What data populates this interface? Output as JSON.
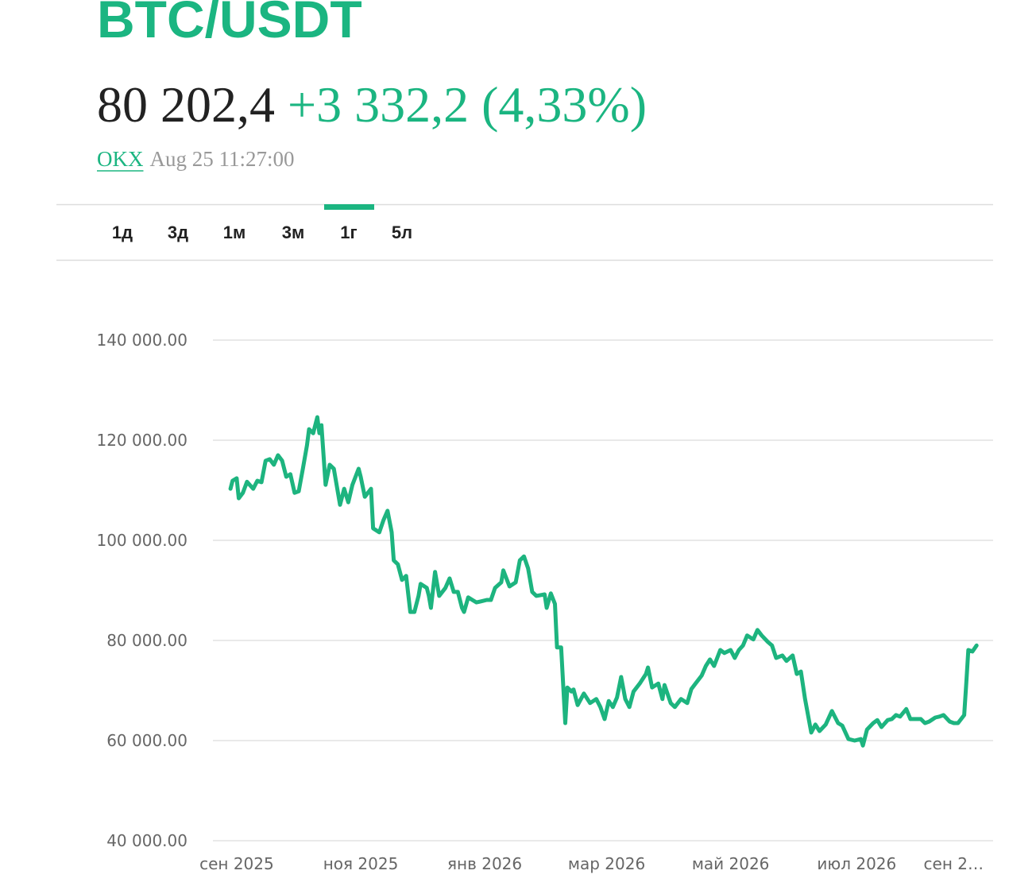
{
  "header": {
    "title": "BTC/USDT",
    "price": "80 202,4",
    "change": "+3 332,2 (4,33%)",
    "source": "OKX",
    "time": "Aug 25 11:27:00"
  },
  "tabs": [
    "1д",
    "3д",
    "1м",
    "3м",
    "1г",
    "5л"
  ],
  "active_tab": "1г",
  "chart_data": {
    "type": "line",
    "color": "#1db47f",
    "grid": true,
    "xlim": [
      -8.5,
      369
    ],
    "ylim": [
      40000,
      140000
    ],
    "xticks": [
      {
        "value": 3,
        "label": "сен 2025"
      },
      {
        "value": 63,
        "label": "ноя 2025"
      },
      {
        "value": 123,
        "label": "янв 2026"
      },
      {
        "value": 182,
        "label": "мар 2026"
      },
      {
        "value": 242,
        "label": "май 2026"
      },
      {
        "value": 303,
        "label": "июл 2026"
      },
      {
        "value": 363,
        "label": "сен 2…"
      }
    ],
    "yticks": [
      {
        "value": 40000,
        "label": "40 000.00"
      },
      {
        "value": 60000,
        "label": "60 000.00"
      },
      {
        "value": 80000,
        "label": "80 000.00"
      },
      {
        "value": 100000,
        "label": "100 000.00"
      },
      {
        "value": 120000,
        "label": "120 000.00"
      },
      {
        "value": 140000,
        "label": "140 000.00"
      }
    ],
    "x": [
      0,
      1,
      3,
      4,
      6,
      8,
      11,
      13,
      15,
      17,
      19,
      21,
      23,
      25,
      27,
      29,
      31,
      33,
      35,
      37,
      38,
      40,
      42,
      43,
      44,
      46,
      48,
      50,
      53,
      55,
      57,
      59,
      62,
      63,
      65,
      68,
      69,
      72,
      74,
      76,
      78,
      79,
      81,
      83,
      85,
      87,
      89,
      91,
      92,
      95,
      96,
      97,
      99,
      101,
      104,
      106,
      108,
      110,
      112,
      113,
      115,
      117,
      119,
      121,
      124,
      126,
      128,
      131,
      132,
      135,
      138,
      140,
      142,
      144,
      146,
      148,
      152,
      153,
      155,
      157,
      158,
      160,
      162,
      163,
      165,
      166,
      168,
      171,
      174,
      177,
      179,
      181,
      183,
      185,
      187,
      189,
      191,
      193,
      195,
      198,
      201,
      202,
      204,
      207,
      209,
      210,
      213,
      215,
      218,
      221,
      223,
      225,
      228,
      230,
      232,
      234,
      237,
      239,
      242,
      244,
      246,
      248,
      250,
      253,
      255,
      257,
      260,
      262,
      264,
      267,
      269,
      272,
      274,
      276,
      278,
      281,
      283,
      285,
      288,
      291,
      292,
      294,
      296,
      299,
      302,
      305,
      306,
      308,
      311,
      313,
      315,
      318,
      320,
      322,
      324,
      327,
      329,
      332,
      334,
      336,
      338,
      341,
      343,
      345,
      348,
      350,
      352,
      355,
      356,
      357,
      359,
      361
    ],
    "values": [
      110300,
      111900,
      112400,
      108400,
      109500,
      111700,
      110300,
      111900,
      111600,
      115900,
      116200,
      115100,
      117000,
      115900,
      112700,
      113200,
      109500,
      109800,
      114300,
      119000,
      122200,
      121400,
      124600,
      121400,
      123000,
      111100,
      115100,
      114300,
      107100,
      110300,
      107600,
      111100,
      114300,
      112700,
      108700,
      110300,
      102400,
      101600,
      104000,
      105900,
      101600,
      96000,
      95200,
      92100,
      92900,
      85700,
      85700,
      88900,
      91300,
      90500,
      88900,
      86500,
      93700,
      88900,
      90500,
      92400,
      89700,
      89700,
      86500,
      85700,
      88600,
      88100,
      87600,
      87800,
      88100,
      88100,
      90500,
      91600,
      94000,
      90800,
      91600,
      96000,
      96800,
      94400,
      89700,
      88900,
      89200,
      86500,
      89400,
      87300,
      78600,
      78600,
      63500,
      70600,
      69800,
      70200,
      67100,
      69400,
      67500,
      68300,
      66700,
      64300,
      67900,
      66700,
      68600,
      72700,
      68300,
      66700,
      69800,
      71400,
      73300,
      74600,
      70600,
      71400,
      68300,
      71100,
      67500,
      66700,
      68300,
      67500,
      70300,
      71400,
      73000,
      74900,
      76200,
      74900,
      78100,
      77500,
      78100,
      76500,
      78100,
      79000,
      81000,
      80200,
      82100,
      81000,
      79700,
      79000,
      76500,
      77000,
      75900,
      77000,
      73300,
      73800,
      68300,
      61600,
      63200,
      61900,
      63200,
      65900,
      65100,
      63500,
      63000,
      60300,
      60000,
      60300,
      59000,
      62200,
      63500,
      64100,
      62700,
      64100,
      64300,
      65100,
      64800,
      66300,
      64300,
      64300,
      64300,
      63500,
      63800,
      64600,
      64800,
      65100,
      63800,
      63500,
      63500,
      65100,
      71400,
      78100,
      77800,
      79000
    ]
  }
}
